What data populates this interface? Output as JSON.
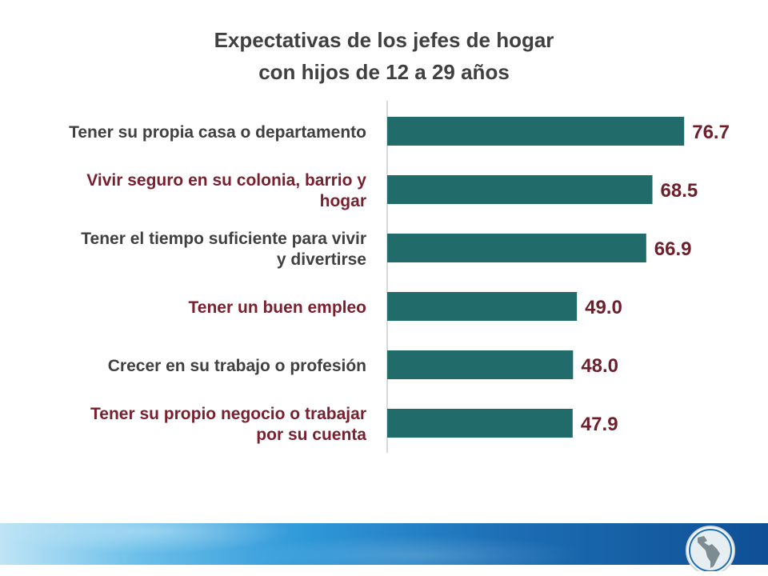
{
  "chart_data": {
    "type": "bar",
    "orientation": "horizontal",
    "title_lines": [
      "Expectativas de los jefes de hogar",
      "con hijos de 12 a 29 años"
    ],
    "categories": [
      {
        "lines": [
          "Tener su propia casa o departamento"
        ],
        "label_color": "#404040"
      },
      {
        "lines": [
          "Vivir seguro en su colonia, barrio y",
          "hogar"
        ],
        "label_color": "#7a1f2e"
      },
      {
        "lines": [
          "Tener el tiempo suficiente para vivir",
          "y divertirse"
        ],
        "label_color": "#404040"
      },
      {
        "lines": [
          "Tener un buen empleo"
        ],
        "label_color": "#7a1f2e"
      },
      {
        "lines": [
          "Crecer en su trabajo o profesión"
        ],
        "label_color": "#404040"
      },
      {
        "lines": [
          "Tener su propio negocio o trabajar",
          "por su cuenta"
        ],
        "label_color": "#7a1f2e"
      }
    ],
    "values": [
      76.7,
      68.5,
      66.9,
      49.0,
      48.0,
      47.9
    ],
    "value_labels": [
      "76.7",
      "68.5",
      "66.9",
      "49.0",
      "48.0",
      "47.9"
    ],
    "xlim": [
      0,
      100
    ],
    "bar_color": "#226b6b",
    "value_label_color": "#6e1f2b",
    "axis_color": "#d9d9d9",
    "grid": false,
    "legend": "none"
  },
  "footer": {
    "logo_icon": "latin-america-map-icon"
  }
}
